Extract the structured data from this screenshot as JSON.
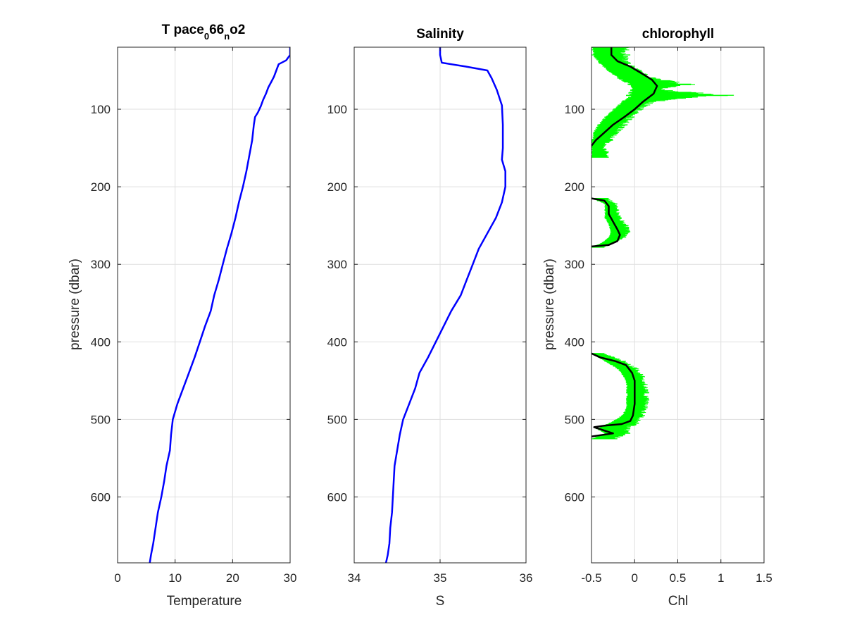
{
  "figure": {
    "background": "#ffffff"
  },
  "chart_data": [
    {
      "type": "line",
      "title": "T pace",
      "title_parts": {
        "base": "T pace",
        "sub1": "0",
        "mid": "66",
        "sub2": "n",
        "tail": "o2"
      },
      "xlabel": "Temperature",
      "ylabel": "pressure (dbar)",
      "xlim": [
        0,
        30
      ],
      "ylim": [
        20,
        685
      ],
      "y_reversed": true,
      "xticks": [
        0,
        10,
        20,
        30
      ],
      "yticks": [
        100,
        200,
        300,
        400,
        500,
        600
      ],
      "grid": true,
      "series": [
        {
          "color": "#0000ff",
          "width": 2.5,
          "x": [
            30,
            30,
            29.3,
            28,
            27.6,
            27.2,
            26.7,
            26.2,
            25.8,
            25.3,
            24.9,
            24.4,
            23.9,
            23.7,
            23.4,
            22.9,
            22.4,
            21.8,
            21.1,
            20.5,
            19.8,
            19.0,
            18.3,
            17.6,
            16.8,
            16.2,
            15.2,
            14.3,
            13.4,
            12.4,
            11.4,
            10.4,
            9.6,
            9.3,
            9.1,
            8.5,
            8.1,
            7.6,
            7.0,
            6.6,
            6.2,
            5.8,
            5.6
          ],
          "y": [
            20,
            30,
            37,
            42,
            50,
            58,
            65,
            72,
            80,
            88,
            96,
            104,
            110,
            120,
            140,
            160,
            180,
            200,
            220,
            240,
            260,
            280,
            300,
            320,
            340,
            360,
            380,
            400,
            420,
            440,
            460,
            480,
            500,
            520,
            540,
            560,
            580,
            600,
            620,
            640,
            660,
            675,
            685
          ]
        }
      ]
    },
    {
      "type": "line",
      "title": "Salinity",
      "xlabel": "S",
      "ylabel": "",
      "xlim": [
        34,
        36
      ],
      "ylim": [
        20,
        685
      ],
      "y_reversed": true,
      "xticks": [
        34,
        35,
        36
      ],
      "yticks": [
        100,
        200,
        300,
        400,
        500,
        600
      ],
      "grid": true,
      "series": [
        {
          "color": "#ff0000",
          "width": 1.2,
          "x": [
            35.0,
            35.0,
            35.02,
            35.3,
            35.55,
            35.6,
            35.66,
            35.72,
            35.73,
            35.73,
            35.72,
            35.76,
            35.76,
            35.72,
            35.65,
            35.55,
            35.45,
            35.38,
            35.31,
            35.24,
            35.13,
            35.04,
            34.95,
            34.86,
            34.76,
            34.71,
            34.64,
            34.57,
            34.53,
            34.5,
            34.47,
            34.46,
            34.45,
            34.44,
            34.42,
            34.41,
            34.39,
            34.37
          ],
          "y": [
            20,
            30,
            40,
            45,
            50,
            60,
            75,
            95,
            120,
            150,
            165,
            180,
            200,
            220,
            240,
            260,
            280,
            300,
            320,
            340,
            360,
            380,
            400,
            420,
            440,
            460,
            480,
            500,
            520,
            540,
            560,
            580,
            600,
            620,
            640,
            660,
            675,
            685
          ]
        },
        {
          "color": "#0000ff",
          "width": 2.5,
          "x": [
            35.0,
            35.0,
            35.02,
            35.3,
            35.55,
            35.6,
            35.66,
            35.72,
            35.73,
            35.73,
            35.72,
            35.76,
            35.76,
            35.72,
            35.65,
            35.55,
            35.45,
            35.38,
            35.31,
            35.24,
            35.13,
            35.04,
            34.95,
            34.86,
            34.76,
            34.71,
            34.64,
            34.57,
            34.53,
            34.5,
            34.47,
            34.46,
            34.45,
            34.44,
            34.42,
            34.41,
            34.39,
            34.37
          ],
          "y": [
            20,
            30,
            40,
            45,
            50,
            60,
            75,
            95,
            120,
            150,
            165,
            180,
            200,
            220,
            240,
            260,
            280,
            300,
            320,
            340,
            360,
            380,
            400,
            420,
            440,
            460,
            480,
            500,
            520,
            540,
            560,
            580,
            600,
            620,
            640,
            660,
            675,
            685
          ]
        }
      ]
    },
    {
      "type": "line",
      "title": "chlorophyll",
      "xlabel": "Chl",
      "ylabel": "pressure (dbar)",
      "xlim": [
        -0.5,
        1.5
      ],
      "ylim": [
        20,
        685
      ],
      "y_reversed": true,
      "xticks": [
        -0.5,
        0,
        0.5,
        1,
        1.5
      ],
      "xticklabels": [
        "-0.5",
        "0",
        "0.5",
        "1",
        "1.5"
      ],
      "yticks": [
        100,
        200,
        300,
        400,
        500,
        600
      ],
      "grid": true,
      "series": [
        {
          "color": "#00ff00",
          "width": 1.0,
          "style": "noisy-bars",
          "segments": [
            {
              "y": [
                20,
                30,
                40,
                50,
                60,
                68,
                75,
                82,
                90,
                100,
                110,
                120,
                130,
                140,
                148,
                155,
                162
              ],
              "lo": [
                -0.5,
                -0.5,
                -0.42,
                -0.32,
                -0.2,
                -0.08,
                -0.05,
                -0.1,
                -0.15,
                -0.25,
                -0.35,
                -0.43,
                -0.48,
                -0.5,
                -0.5,
                -0.5,
                -0.5
              ],
              "hi": [
                -0.05,
                -0.05,
                -0.05,
                0.08,
                0.25,
                0.7,
                0.35,
                1.15,
                0.25,
                0.1,
                0.0,
                -0.08,
                -0.18,
                -0.25,
                -0.35,
                -0.3,
                -0.3
              ]
            },
            {
              "y": [
                215,
                222,
                230,
                240,
                250,
                258,
                265,
                272,
                278
              ],
              "lo": [
                -0.5,
                -0.35,
                -0.35,
                -0.35,
                -0.3,
                -0.28,
                -0.3,
                -0.38,
                -0.5
              ],
              "hi": [
                -0.3,
                -0.2,
                -0.18,
                -0.15,
                -0.07,
                -0.05,
                -0.1,
                -0.22,
                -0.35
              ]
            },
            {
              "y": [
                415,
                425,
                435,
                445,
                455,
                465,
                475,
                485,
                495,
                505,
                512,
                518,
                525
              ],
              "lo": [
                -0.5,
                -0.35,
                -0.2,
                -0.13,
                -0.1,
                -0.1,
                -0.1,
                -0.1,
                -0.15,
                -0.3,
                -0.45,
                -0.35,
                -0.5
              ],
              "hi": [
                -0.35,
                -0.1,
                0.05,
                0.12,
                0.15,
                0.17,
                0.17,
                0.15,
                0.12,
                0.05,
                -0.05,
                -0.05,
                -0.2
              ]
            }
          ]
        },
        {
          "color": "#000000",
          "width": 2.5,
          "segments": [
            {
              "x": [
                -0.27,
                -0.27,
                -0.2,
                -0.05,
                0.1,
                0.2,
                0.26,
                0.22,
                0.1,
                0.0,
                -0.12,
                -0.25,
                -0.35,
                -0.45,
                -0.5
              ],
              "y": [
                20,
                30,
                38,
                45,
                55,
                62,
                70,
                80,
                90,
                100,
                110,
                120,
                130,
                140,
                147
              ]
            },
            {
              "x": [
                -0.5,
                -0.35,
                -0.3,
                -0.3,
                -0.25,
                -0.2,
                -0.17,
                -0.2,
                -0.3,
                -0.5
              ],
              "y": [
                215,
                218,
                225,
                235,
                245,
                255,
                262,
                270,
                275,
                277
              ]
            },
            {
              "x": [
                -0.5,
                -0.4,
                -0.22,
                -0.1,
                -0.03,
                0.0,
                0.0,
                0.0,
                -0.02,
                -0.05,
                -0.15,
                -0.35,
                -0.47,
                -0.25,
                -0.5
              ],
              "y": [
                415,
                420,
                425,
                430,
                440,
                450,
                465,
                480,
                495,
                502,
                506,
                508,
                510,
                518,
                522
              ]
            }
          ]
        }
      ]
    }
  ]
}
